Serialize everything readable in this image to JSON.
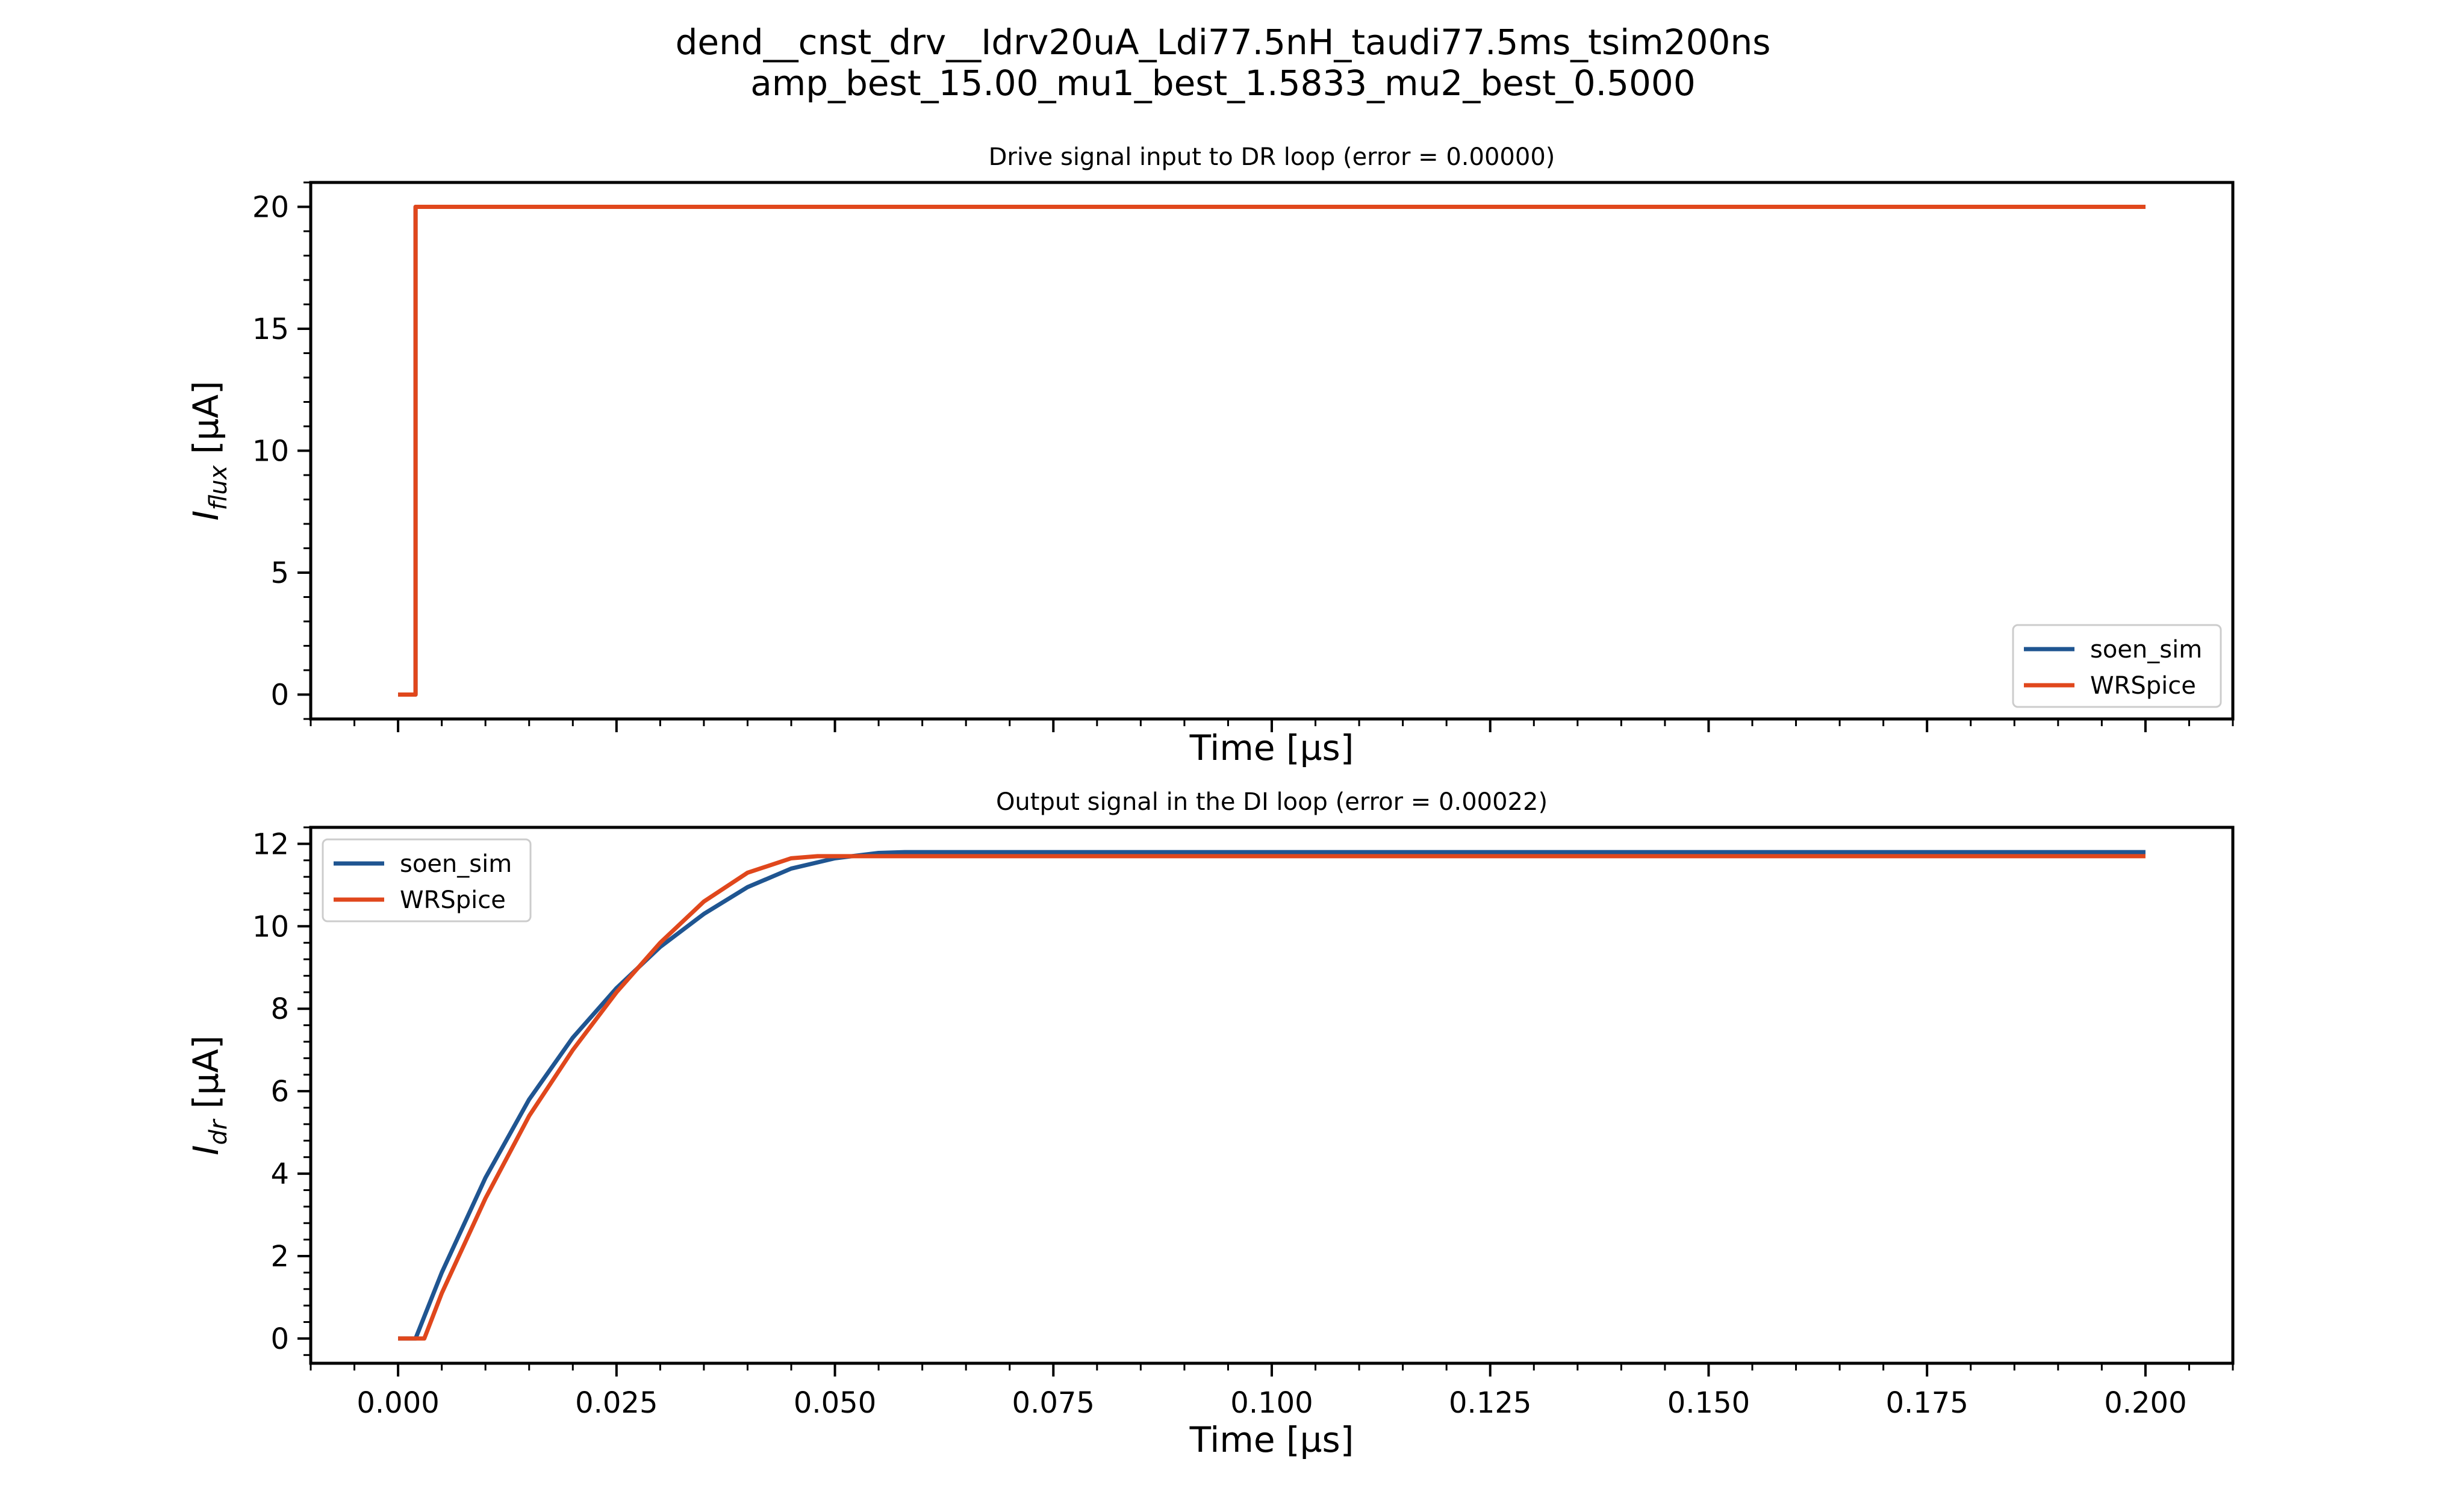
{
  "suptitle": {
    "line1": "dend__cnst_drv__Idrv20uA_Ldi77.5nH_taudi77.5ms_tsim200ns",
    "line2": "amp_best_15.00_mu1_best_1.5833_mu2_best_0.5000"
  },
  "colors": {
    "soen_sim": "#1f5591",
    "WRSpice": "#e0471c"
  },
  "chart_data": [
    {
      "type": "line",
      "title": "Drive signal input to DR loop (error = 0.00000)",
      "xlabel": "Time [µs]",
      "ylabel": "I_flux [µA]",
      "ylabel_main": "I",
      "ylabel_sub": "flux",
      "ylabel_unit": " [µA]",
      "xlim": [
        -0.01,
        0.21
      ],
      "ylim": [
        -1,
        21
      ],
      "xticks": [
        0.0,
        0.025,
        0.05,
        0.075,
        0.1,
        0.125,
        0.15,
        0.175,
        0.2
      ],
      "xtick_labels_visible": false,
      "yticks": [
        0,
        5,
        10,
        15,
        20
      ],
      "ytick_labels": [
        "0",
        "5",
        "10",
        "15",
        "20"
      ],
      "legend": "lower right",
      "series": [
        {
          "name": "soen_sim",
          "x": [
            0.0,
            0.002,
            0.002,
            0.2
          ],
          "y": [
            0,
            0,
            20,
            20
          ]
        },
        {
          "name": "WRSpice",
          "x": [
            0.0,
            0.002,
            0.002,
            0.2
          ],
          "y": [
            0,
            0,
            20,
            20
          ]
        }
      ]
    },
    {
      "type": "line",
      "title": "Output signal in the DI loop (error = 0.00022)",
      "xlabel": "Time [µs]",
      "ylabel": "I_dr [µA]",
      "ylabel_main": "I",
      "ylabel_sub": "dr",
      "ylabel_unit": " [µA]",
      "xlim": [
        -0.01,
        0.21
      ],
      "ylim": [
        -0.6,
        12.4
      ],
      "xticks": [
        0.0,
        0.025,
        0.05,
        0.075,
        0.1,
        0.125,
        0.15,
        0.175,
        0.2
      ],
      "xtick_labels": [
        "0.000",
        "0.025",
        "0.050",
        "0.075",
        "0.100",
        "0.125",
        "0.150",
        "0.175",
        "0.200"
      ],
      "xtick_labels_visible": true,
      "yticks": [
        0,
        2,
        4,
        6,
        8,
        10,
        12
      ],
      "ytick_labels": [
        "0",
        "2",
        "4",
        "6",
        "8",
        "10",
        "12"
      ],
      "legend": "upper left",
      "series": [
        {
          "name": "soen_sim",
          "x": [
            0.0,
            0.002,
            0.005,
            0.01,
            0.015,
            0.02,
            0.025,
            0.03,
            0.035,
            0.04,
            0.045,
            0.05,
            0.055,
            0.058,
            0.1,
            0.15,
            0.2
          ],
          "y": [
            0,
            0,
            1.6,
            3.9,
            5.8,
            7.3,
            8.5,
            9.5,
            10.3,
            10.95,
            11.4,
            11.65,
            11.78,
            11.8,
            11.8,
            11.8,
            11.8
          ]
        },
        {
          "name": "WRSpice",
          "x": [
            0.0,
            0.003,
            0.005,
            0.01,
            0.015,
            0.02,
            0.025,
            0.03,
            0.035,
            0.04,
            0.045,
            0.048,
            0.1,
            0.15,
            0.2
          ],
          "y": [
            0,
            0,
            1.1,
            3.4,
            5.4,
            7.0,
            8.4,
            9.6,
            10.6,
            11.3,
            11.65,
            11.7,
            11.7,
            11.7,
            11.7
          ]
        }
      ]
    }
  ]
}
